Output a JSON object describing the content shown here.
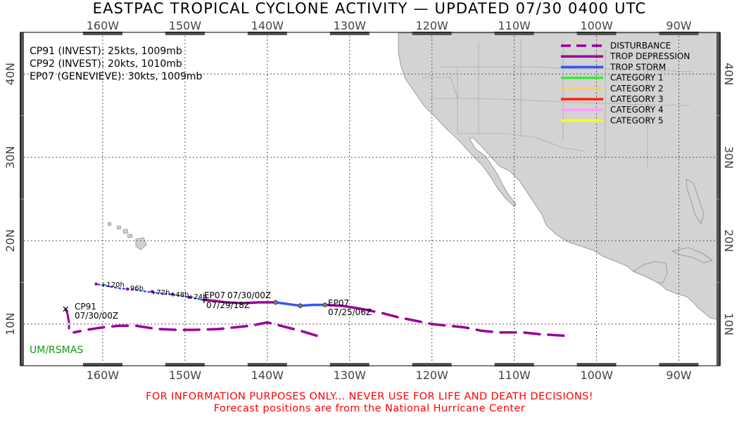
{
  "title": "EASTPAC TROPICAL CYCLONE ACTIVITY — UPDATED 07/30 0400 UTC",
  "map": {
    "lon_range": [
      -170,
      -85
    ],
    "lat_range": [
      5,
      45
    ],
    "lon_labels": [
      "160W",
      "150W",
      "140W",
      "130W",
      "120W",
      "110W",
      "100W",
      "90W"
    ],
    "lat_labels": [
      "10N",
      "20N",
      "30N",
      "40N"
    ],
    "land_color": "#d3d3d3",
    "grid": "dotted",
    "credit": "UM/RSMAS",
    "credit_color": "#119911"
  },
  "status_lines": [
    "CP91 (INVEST): 25kts, 1009mb",
    "CP92 (INVEST): 20kts, 1010mb",
    "EP07 (GENEVIEVE): 30kts, 1009mb"
  ],
  "legend": [
    {
      "label": "DISTURBANCE",
      "color": "#990099",
      "style": "dashed"
    },
    {
      "label": "TROP DEPRESSION",
      "color": "#990099",
      "style": "solid"
    },
    {
      "label": "TROP STORM",
      "color": "#3355ff",
      "style": "solid"
    },
    {
      "label": "CATEGORY 1",
      "color": "#33ee33",
      "style": "solid"
    },
    {
      "label": "CATEGORY 2",
      "color": "#ffcc66",
      "style": "solid"
    },
    {
      "label": "CATEGORY 3",
      "color": "#ff2200",
      "style": "solid"
    },
    {
      "label": "CATEGORY 4",
      "color": "#ff99ff",
      "style": "solid"
    },
    {
      "label": "CATEGORY 5",
      "color": "#ffff00",
      "style": "solid"
    }
  ],
  "storm_labels": [
    {
      "id": "CP91",
      "name": "CP91",
      "date": "07/30/00Z"
    },
    {
      "id": "EP07",
      "name": "EP07",
      "date": "07/25/06Z"
    },
    {
      "id": "EP07-pos",
      "name": "EP07",
      "date": "07/30/00Z"
    },
    {
      "id": "CP92",
      "name": "",
      "date": "07/29/18Z"
    }
  ],
  "forecast_labels": [
    "+120h",
    "96h",
    "+72h",
    "+48h",
    "+24h"
  ],
  "footer": [
    "FOR INFORMATION PURPOSES ONLY... NEVER USE FOR LIFE AND DEATH DECISIONS!",
    "Forecast positions are from the National Hurricane Center"
  ],
  "tracks": {
    "ep07_disturbance": [
      [
        -104,
        8.6
      ],
      [
        -107,
        8.8
      ],
      [
        -109,
        9.0
      ],
      [
        -112,
        9.0
      ],
      [
        -114,
        9.2
      ],
      [
        -116,
        9.6
      ],
      [
        -118,
        9.8
      ],
      [
        -120,
        10.0
      ],
      [
        -122,
        10.4
      ],
      [
        -124,
        10.8
      ],
      [
        -126,
        11.3
      ],
      [
        -127.5,
        11.6
      ],
      [
        -129,
        11.9
      ]
    ],
    "ep07_td_a": [
      [
        -129,
        11.9
      ],
      [
        -131,
        12.2
      ],
      [
        -133,
        12.3
      ]
    ],
    "ep07_ts": [
      [
        -133,
        12.3
      ],
      [
        -134.5,
        12.3
      ],
      [
        -136,
        12.2
      ],
      [
        -137.5,
        12.4
      ],
      [
        -139,
        12.6
      ]
    ],
    "ep07_td_b": [
      [
        -139,
        12.6
      ],
      [
        -141,
        12.6
      ],
      [
        -143,
        12.5
      ],
      [
        -145,
        12.6
      ],
      [
        -146.5,
        12.8
      ],
      [
        -147.7,
        12.9
      ]
    ],
    "ep07_points": [
      [
        -139,
        12.6
      ],
      [
        -136,
        12.2
      ],
      [
        -133,
        12.3
      ]
    ],
    "forecast": [
      [
        -147.7,
        12.9
      ],
      [
        -150,
        13.3
      ],
      [
        -152,
        13.6
      ],
      [
        -154,
        13.8
      ],
      [
        -156,
        14.1
      ],
      [
        -158,
        14.3
      ],
      [
        -160.8,
        14.8
      ]
    ],
    "forecast_points": [
      [
        -149.5,
        13.2
      ],
      [
        -151.5,
        13.6
      ],
      [
        -154,
        13.9
      ],
      [
        -157,
        14.2
      ],
      [
        -160.8,
        14.8
      ]
    ],
    "cp92_disturbance": [
      [
        -134,
        8.6
      ],
      [
        -136,
        9.2
      ],
      [
        -138,
        9.7
      ],
      [
        -140,
        10.2
      ],
      [
        -142,
        9.8
      ],
      [
        -144,
        9.6
      ],
      [
        -146,
        9.4
      ],
      [
        -149,
        9.3
      ],
      [
        -151,
        9.3
      ],
      [
        -153,
        9.4
      ],
      [
        -154,
        9.5
      ],
      [
        -156,
        9.8
      ],
      [
        -158,
        9.8
      ],
      [
        -160,
        9.6
      ],
      [
        -162,
        9.3
      ],
      [
        -163.5,
        9.0
      ]
    ],
    "cp91_td": [
      [
        -164.5,
        11.8
      ],
      [
        -164.3,
        11.3
      ],
      [
        -164.2,
        10.8
      ]
    ],
    "cp91_disturbance": [
      [
        -164.2,
        10.8
      ],
      [
        -164.1,
        10.2
      ],
      [
        -164.1,
        9.5
      ]
    ]
  }
}
